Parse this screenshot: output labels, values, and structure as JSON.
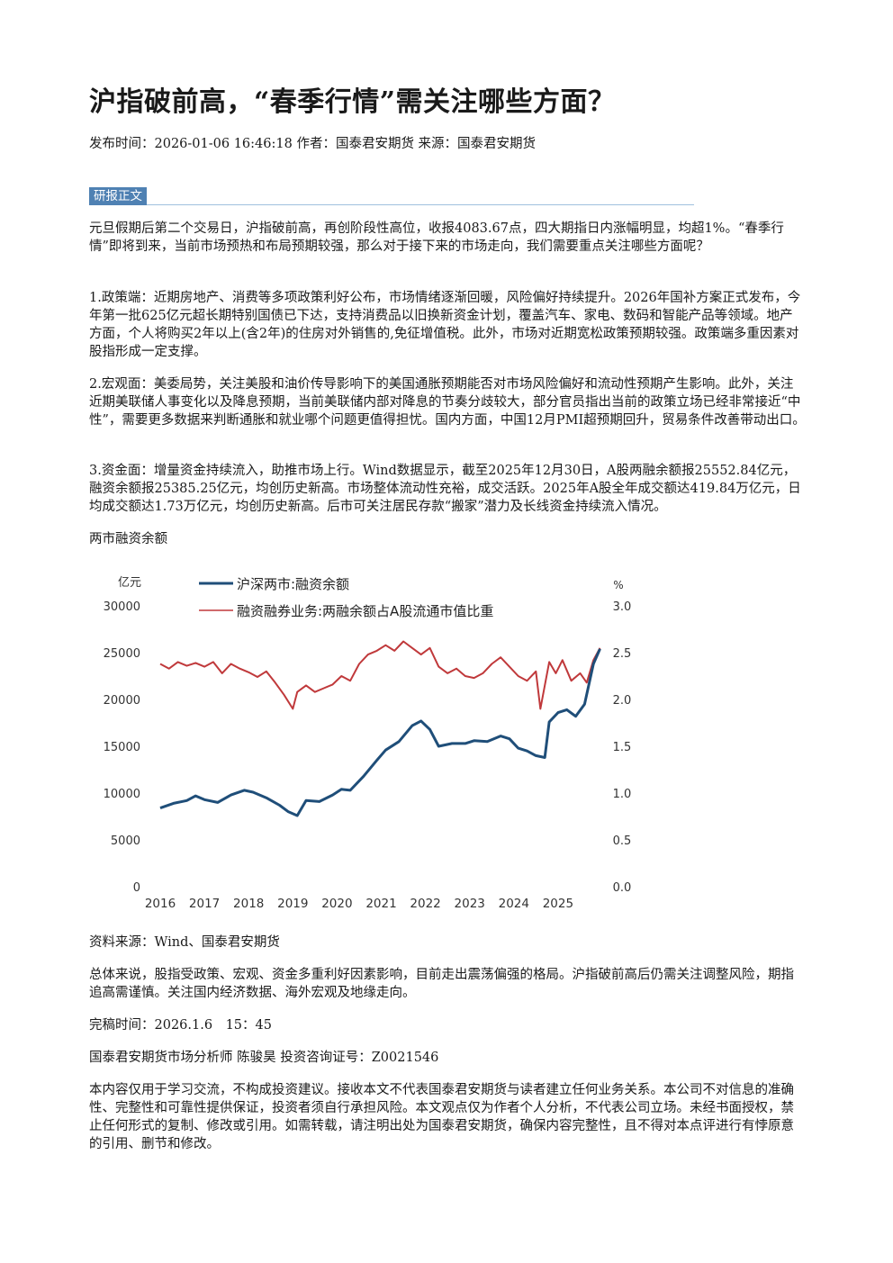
{
  "article": {
    "title": "沪指破前高，“春季行情”需关注哪些方面？",
    "meta": "发布时间：2026-01-06 16:46:18 作者：国泰君安期货 来源：国泰君安期货",
    "section_tag": "研报正文",
    "paragraphs": [
      "元旦假期后第二个交易日，沪指破前高，再创阶段性高位，收报4083.67点，四大期指日内涨幅明显，均超1%。“春季行情”即将到来，当前市场预热和布局预期较强，那么对于接下来的市场走向，我们需要重点关注哪些方面呢？",
      "1.政策端：近期房地产、消费等多项政策利好公布，市场情绪逐渐回暖，风险偏好持续提升。2026年国补方案正式发布，今年第一批625亿元超长期特别国债已下达，支持消费品以旧换新资金计划，覆盖汽车、家电、数码和智能产品等领域。地产方面，个人将购买2年以上(含2年)的住房对外销售的,免征增值税。此外，市场对近期宽松政策预期较强。政策端多重因素对股指形成一定支撑。",
      "2.宏观面：美委局势，关注美股和油价传导影响下的美国通胀预期能否对市场风险偏好和流动性预期产生影响。此外，关注近期美联储人事变化以及降息预期，当前美联储内部对降息的节奏分歧较大，部分官员指出当前的政策立场已经非常接近“中性”，需要更多数据来判断通胀和就业哪个问题更值得担忧。国内方面，中国12月PMI超预期回升，贸易条件改善带动出口。",
      "3.资金面：增量资金持续流入，助推市场上行。Wind数据显示，截至2025年12月30日，A股两融余额报25552.84亿元，融资余额报25385.25亿元，均创历史新高。市场整体流动性充裕，成交活跃。2025年A股全年成交额达419.84万亿元，日均成交额达1.73万亿元，均创历史新高。后市可关注居民存款“搬家”潜力及长线资金持续流入情况。"
    ],
    "chart_caption": "两市融资余额",
    "source": "资料来源：Wind、国泰君安期货",
    "conclusion": "总体来说，股指受政策、宏观、资金多重利好因素影响，目前走出震荡偏强的格局。沪指破前高后仍需关注调整风险，期指追高需谨慎。关注国内经济数据、海外宏观及地缘走向。",
    "completed": "完稿时间：2026.1.6　15：45",
    "analyst": "国泰君安期货市场分析师 陈骏昊 投资咨询证号：Z0021546",
    "disclaimer": "本内容仅用于学习交流，不构成投资建议。接收本文不代表国泰君安期货与读者建立任何业务关系。本公司不对信息的准确性、完整性和可靠性提供保证，投资者须自行承担风险。本文观点仅为作者个人分析，不代表公司立场。未经书面授权，禁止任何形式的复制、修改或引用。如需转载，请注明出处为国泰君安期货，确保内容完整性，且不得对本点评进行有悖原意的引用、删节和修改。"
  },
  "chart_data": {
    "type": "line",
    "ylabel_left": "亿元",
    "ylabel_right": "%",
    "y_left_range": [
      0,
      30000
    ],
    "y_right_range": [
      0.0,
      3.0
    ],
    "y_left_ticks": [
      "0",
      "5000",
      "10000",
      "15000",
      "20000",
      "25000",
      "30000"
    ],
    "y_right_ticks": [
      "0.0",
      "0.5",
      "1.0",
      "1.5",
      "2.0",
      "2.5",
      "3.0"
    ],
    "x_ticks": [
      "2016",
      "2017",
      "2018",
      "2019",
      "2020",
      "2021",
      "2022",
      "2023",
      "2024",
      "2025"
    ],
    "x_range": [
      2016.0,
      2026.0
    ],
    "legend_position": "top-left",
    "series": [
      {
        "name": "沪深两市:融资余额",
        "axis": "left",
        "color": "#1f4e79",
        "points": [
          [
            2016.0,
            8400
          ],
          [
            2016.3,
            8900
          ],
          [
            2016.6,
            9200
          ],
          [
            2016.8,
            9700
          ],
          [
            2017.0,
            9300
          ],
          [
            2017.3,
            9000
          ],
          [
            2017.6,
            9800
          ],
          [
            2017.9,
            10300
          ],
          [
            2018.1,
            10100
          ],
          [
            2018.4,
            9500
          ],
          [
            2018.7,
            8700
          ],
          [
            2018.9,
            8000
          ],
          [
            2019.1,
            7600
          ],
          [
            2019.3,
            9200
          ],
          [
            2019.6,
            9100
          ],
          [
            2019.9,
            9800
          ],
          [
            2020.1,
            10400
          ],
          [
            2020.3,
            10300
          ],
          [
            2020.6,
            11800
          ],
          [
            2020.9,
            13500
          ],
          [
            2021.1,
            14600
          ],
          [
            2021.4,
            15500
          ],
          [
            2021.7,
            17200
          ],
          [
            2021.9,
            17700
          ],
          [
            2022.1,
            16800
          ],
          [
            2022.3,
            15000
          ],
          [
            2022.6,
            15300
          ],
          [
            2022.9,
            15300
          ],
          [
            2023.1,
            15600
          ],
          [
            2023.4,
            15500
          ],
          [
            2023.7,
            16100
          ],
          [
            2023.9,
            15800
          ],
          [
            2024.1,
            14800
          ],
          [
            2024.3,
            14500
          ],
          [
            2024.5,
            14000
          ],
          [
            2024.7,
            13800
          ],
          [
            2024.8,
            17600
          ],
          [
            2025.0,
            18600
          ],
          [
            2025.2,
            18900
          ],
          [
            2025.4,
            18200
          ],
          [
            2025.6,
            19500
          ],
          [
            2025.8,
            23800
          ],
          [
            2025.95,
            25400
          ]
        ]
      },
      {
        "name": "融资融券业务:两融余额占A股流通市值比重",
        "axis": "right",
        "color": "#c0393b",
        "points": [
          [
            2016.0,
            2.38
          ],
          [
            2016.2,
            2.33
          ],
          [
            2016.4,
            2.4
          ],
          [
            2016.6,
            2.36
          ],
          [
            2016.8,
            2.39
          ],
          [
            2017.0,
            2.35
          ],
          [
            2017.2,
            2.4
          ],
          [
            2017.4,
            2.28
          ],
          [
            2017.6,
            2.38
          ],
          [
            2017.8,
            2.33
          ],
          [
            2018.0,
            2.29
          ],
          [
            2018.2,
            2.24
          ],
          [
            2018.4,
            2.3
          ],
          [
            2018.6,
            2.18
          ],
          [
            2018.8,
            2.05
          ],
          [
            2019.0,
            1.9
          ],
          [
            2019.1,
            2.08
          ],
          [
            2019.3,
            2.15
          ],
          [
            2019.5,
            2.08
          ],
          [
            2019.7,
            2.12
          ],
          [
            2019.9,
            2.16
          ],
          [
            2020.1,
            2.25
          ],
          [
            2020.3,
            2.2
          ],
          [
            2020.5,
            2.38
          ],
          [
            2020.7,
            2.48
          ],
          [
            2020.9,
            2.52
          ],
          [
            2021.1,
            2.58
          ],
          [
            2021.3,
            2.52
          ],
          [
            2021.5,
            2.62
          ],
          [
            2021.7,
            2.55
          ],
          [
            2021.9,
            2.48
          ],
          [
            2022.1,
            2.55
          ],
          [
            2022.3,
            2.35
          ],
          [
            2022.5,
            2.28
          ],
          [
            2022.7,
            2.33
          ],
          [
            2022.9,
            2.25
          ],
          [
            2023.1,
            2.23
          ],
          [
            2023.3,
            2.28
          ],
          [
            2023.5,
            2.38
          ],
          [
            2023.7,
            2.45
          ],
          [
            2023.9,
            2.35
          ],
          [
            2024.1,
            2.25
          ],
          [
            2024.3,
            2.2
          ],
          [
            2024.5,
            2.3
          ],
          [
            2024.6,
            1.9
          ],
          [
            2024.8,
            2.4
          ],
          [
            2024.95,
            2.28
          ],
          [
            2025.1,
            2.42
          ],
          [
            2025.3,
            2.2
          ],
          [
            2025.5,
            2.28
          ],
          [
            2025.65,
            2.18
          ],
          [
            2025.8,
            2.42
          ],
          [
            2025.95,
            2.55
          ]
        ]
      }
    ]
  }
}
